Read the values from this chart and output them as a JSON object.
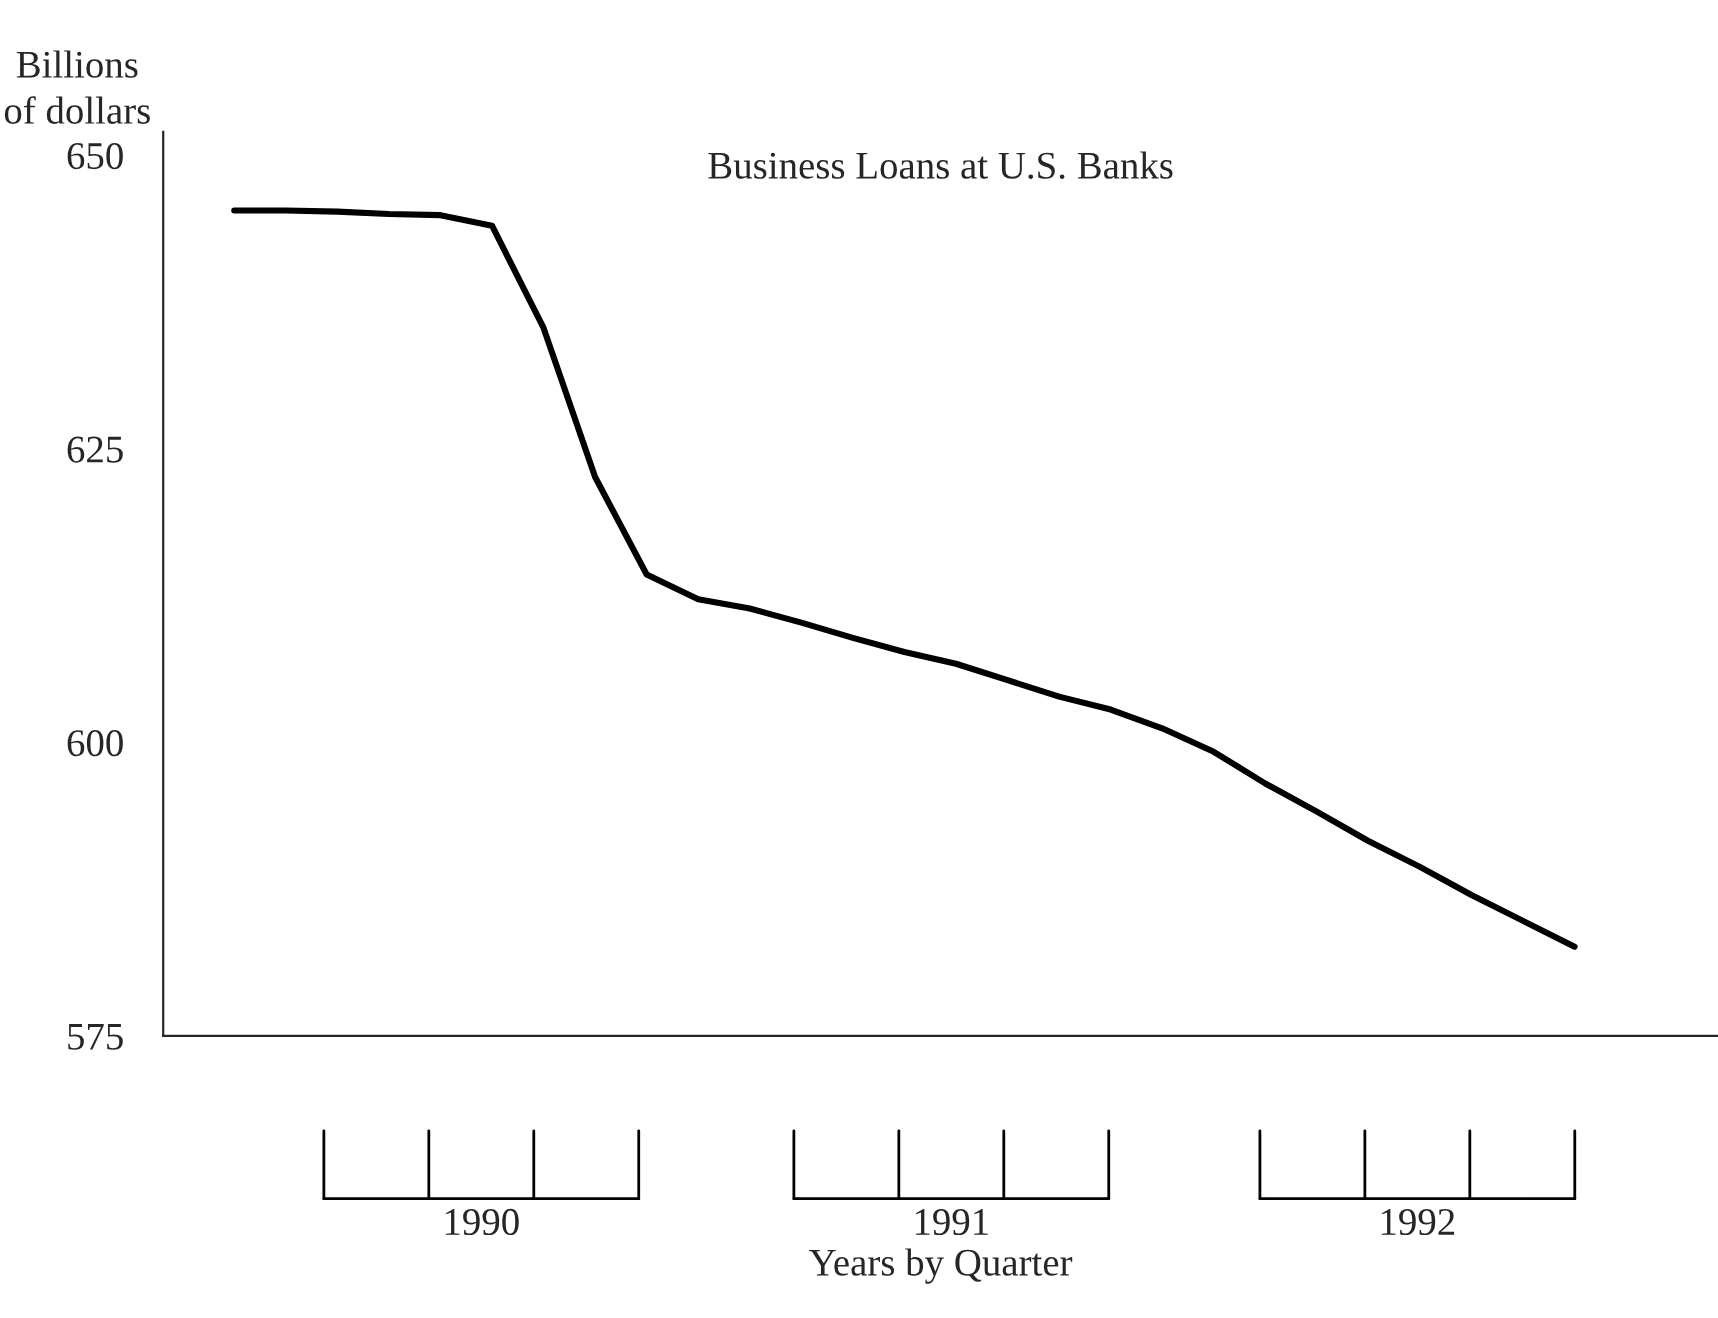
{
  "chart_data": {
    "type": "line",
    "title": "Business Loans at U.S. Banks",
    "ylabel": "Billions\nof dollars",
    "categories": [
      null,
      null,
      null,
      null,
      null,
      null,
      null,
      null,
      null,
      null,
      null,
      null,
      null,
      null,
      null,
      null,
      null,
      null,
      null,
      null,
      null,
      null,
      null,
      null,
      null,
      null,
      null
    ],
    "series": [
      {
        "color": "#000000",
        "values": [
          645.3,
          645.3,
          645.2,
          645.0,
          644.9,
          644.0,
          635.3,
          622.6,
          614.3,
          612.2,
          611.4,
          610.2,
          608.9,
          607.7,
          606.7,
          605.3,
          603.9,
          602.8,
          601.2,
          599.2,
          596.5,
          594.1,
          591.6,
          589.4,
          587.0,
          584.8,
          582.6
        ]
      }
    ],
    "ylim": [
      575,
      652
    ],
    "yticks": [
      575,
      600,
      625,
      650
    ],
    "annotations": [
      "1990",
      "1991",
      "1992",
      "Years by Quarter"
    ],
    "grid": false,
    "legend": false,
    "marker": "none",
    "line_style": "solid"
  }
}
